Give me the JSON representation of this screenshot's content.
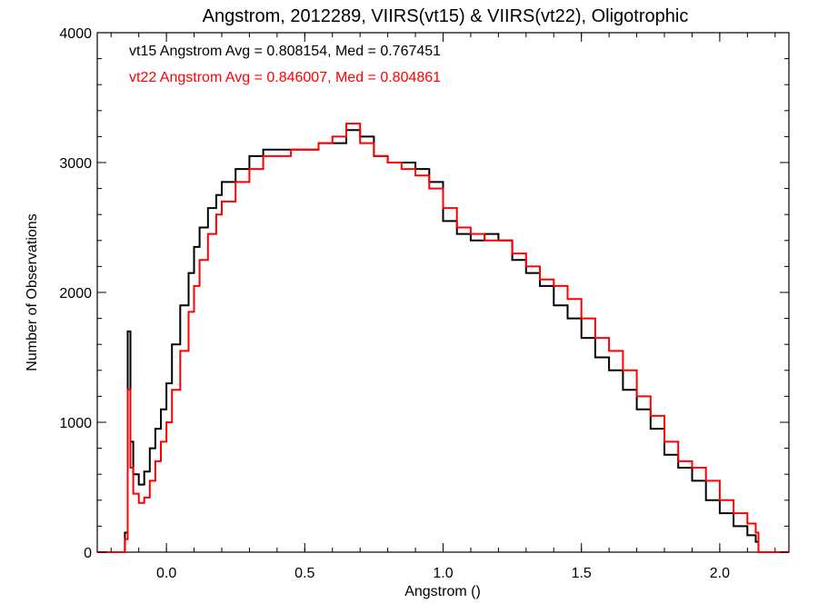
{
  "chart_data": {
    "type": "line",
    "title": "Angstrom, 2012289, VIIRS(vt15) & VIIRS(vt22), Oligotrophic",
    "xlabel": "Angstrom ()",
    "ylabel": "Number of Observations",
    "xlim": [
      -0.25,
      2.25
    ],
    "ylim": [
      0,
      4000
    ],
    "xticks": [
      0.0,
      0.5,
      1.0,
      1.5,
      2.0
    ],
    "xtick_labels": [
      "0.0",
      "0.5",
      "1.0",
      "1.5",
      "2.0"
    ],
    "yticks": [
      0,
      1000,
      2000,
      3000,
      4000
    ],
    "ytick_labels": [
      "0",
      "1000",
      "2000",
      "3000",
      "4000"
    ],
    "annotations": [
      {
        "text": "vt15 Angstrom Avg = 0.808154, Med = 0.767451",
        "color": "#000000"
      },
      {
        "text": "vt22 Angstrom Avg = 0.846007, Med = 0.804861",
        "color": "#ff0000"
      }
    ],
    "series": [
      {
        "color": "#000000",
        "x": [
          -0.25,
          -0.15,
          -0.14,
          -0.13,
          -0.12,
          -0.1,
          -0.08,
          -0.06,
          -0.04,
          -0.02,
          0.0,
          0.02,
          0.05,
          0.08,
          0.1,
          0.12,
          0.15,
          0.18,
          0.2,
          0.25,
          0.3,
          0.35,
          0.4,
          0.45,
          0.5,
          0.55,
          0.6,
          0.65,
          0.7,
          0.75,
          0.8,
          0.85,
          0.9,
          0.95,
          1.0,
          1.05,
          1.1,
          1.15,
          1.2,
          1.25,
          1.3,
          1.35,
          1.4,
          1.45,
          1.5,
          1.55,
          1.6,
          1.65,
          1.7,
          1.75,
          1.8,
          1.85,
          1.9,
          1.95,
          2.0,
          2.05,
          2.1,
          2.13,
          2.14,
          2.25
        ],
        "y": [
          0,
          150,
          1700,
          850,
          600,
          520,
          620,
          800,
          950,
          1100,
          1300,
          1600,
          1900,
          2150,
          2350,
          2500,
          2650,
          2750,
          2850,
          2950,
          3050,
          3100,
          3100,
          3100,
          3100,
          3150,
          3150,
          3250,
          3200,
          3050,
          3000,
          3000,
          2950,
          2850,
          2550,
          2450,
          2400,
          2450,
          2400,
          2250,
          2150,
          2050,
          1900,
          1800,
          1650,
          1500,
          1400,
          1250,
          1100,
          950,
          750,
          650,
          550,
          400,
          300,
          200,
          130,
          80,
          0,
          0
        ]
      },
      {
        "color": "#ff0000",
        "x": [
          -0.25,
          -0.15,
          -0.14,
          -0.13,
          -0.12,
          -0.1,
          -0.08,
          -0.06,
          -0.04,
          -0.02,
          0.0,
          0.02,
          0.05,
          0.08,
          0.1,
          0.12,
          0.15,
          0.18,
          0.2,
          0.25,
          0.3,
          0.35,
          0.4,
          0.45,
          0.5,
          0.55,
          0.6,
          0.65,
          0.7,
          0.75,
          0.8,
          0.85,
          0.9,
          0.95,
          1.0,
          1.05,
          1.1,
          1.15,
          1.2,
          1.25,
          1.3,
          1.35,
          1.4,
          1.45,
          1.5,
          1.55,
          1.6,
          1.65,
          1.7,
          1.75,
          1.8,
          1.85,
          1.9,
          1.95,
          2.0,
          2.05,
          2.1,
          2.13,
          2.14,
          2.25
        ],
        "y": [
          0,
          100,
          1250,
          650,
          450,
          380,
          420,
          550,
          700,
          850,
          1000,
          1250,
          1550,
          1850,
          2050,
          2250,
          2450,
          2600,
          2700,
          2850,
          2950,
          3050,
          3050,
          3100,
          3100,
          3150,
          3200,
          3300,
          3150,
          3050,
          3000,
          2950,
          2900,
          2800,
          2650,
          2500,
          2450,
          2400,
          2400,
          2300,
          2200,
          2100,
          2050,
          1950,
          1800,
          1650,
          1550,
          1400,
          1200,
          1050,
          850,
          700,
          650,
          550,
          400,
          300,
          220,
          150,
          0,
          0
        ]
      }
    ]
  }
}
